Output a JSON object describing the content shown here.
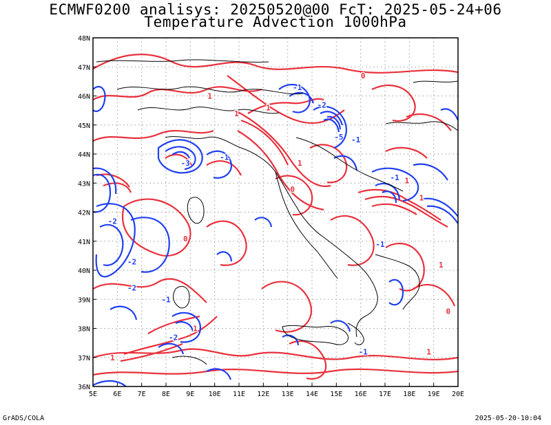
{
  "header": {
    "line1": "ECMWF0200 analisys: 20250520@00 FcT: 2025-05-24+06",
    "line2": "Temperature Advection 1000hPa"
  },
  "footer": {
    "left": "GrADS/COLA",
    "right": "2025-05-20-10:04"
  },
  "axes": {
    "lon_labels": [
      "5E",
      "6E",
      "7E",
      "8E",
      "9E",
      "10E",
      "11E",
      "12E",
      "13E",
      "14E",
      "15E",
      "16E",
      "17E",
      "18E",
      "19E",
      "20E"
    ],
    "lat_labels": [
      "36N",
      "37N",
      "38N",
      "39N",
      "40N",
      "41N",
      "42N",
      "43N",
      "44N",
      "45N",
      "46N",
      "47N",
      "48N"
    ],
    "lon_range": [
      5,
      20
    ],
    "lat_range": [
      36,
      48
    ]
  },
  "colors": {
    "positive": "#e8303c",
    "negative": "#1f3ff0",
    "grid": "#9a9a9a",
    "border": "#000000"
  },
  "contour_labels": [
    {
      "text": "-2",
      "lon": 5.8,
      "lat": 41.6,
      "sign": "neg"
    },
    {
      "text": "-2",
      "lon": 6.6,
      "lat": 40.2,
      "sign": "neg"
    },
    {
      "text": "-2",
      "lon": 6.6,
      "lat": 39.3,
      "sign": "neg"
    },
    {
      "text": "-1",
      "lon": 8.0,
      "lat": 38.9,
      "sign": "neg"
    },
    {
      "text": "-3",
      "lon": 8.8,
      "lat": 43.6,
      "sign": "neg"
    },
    {
      "text": "-1",
      "lon": 10.4,
      "lat": 43.8,
      "sign": "neg"
    },
    {
      "text": "-1",
      "lon": 13.4,
      "lat": 46.2,
      "sign": "neg"
    },
    {
      "text": "-2",
      "lon": 14.4,
      "lat": 45.6,
      "sign": "neg"
    },
    {
      "text": "-5",
      "lon": 15.1,
      "lat": 44.5,
      "sign": "neg"
    },
    {
      "text": "-1",
      "lon": 15.8,
      "lat": 44.4,
      "sign": "neg"
    },
    {
      "text": "-1",
      "lon": 17.4,
      "lat": 43.1,
      "sign": "neg"
    },
    {
      "text": "-1",
      "lon": 16.8,
      "lat": 40.8,
      "sign": "neg"
    },
    {
      "text": "-2",
      "lon": 8.3,
      "lat": 37.6,
      "sign": "neg"
    },
    {
      "text": "1",
      "lon": 9.8,
      "lat": 45.9,
      "sign": "pos"
    },
    {
      "text": "1",
      "lon": 10.9,
      "lat": 45.3,
      "sign": "pos"
    },
    {
      "text": "1",
      "lon": 12.2,
      "lat": 45.5,
      "sign": "pos"
    },
    {
      "text": "1",
      "lon": 13.5,
      "lat": 43.6,
      "sign": "pos"
    },
    {
      "text": "1",
      "lon": 17.9,
      "lat": 43.0,
      "sign": "pos"
    },
    {
      "text": "1",
      "lon": 18.5,
      "lat": 42.4,
      "sign": "pos"
    },
    {
      "text": "1",
      "lon": 9.2,
      "lat": 37.9,
      "sign": "pos"
    },
    {
      "text": "1",
      "lon": 5.8,
      "lat": 36.9,
      "sign": "pos"
    },
    {
      "text": "1",
      "lon": 19.3,
      "lat": 40.1,
      "sign": "pos"
    },
    {
      "text": "0",
      "lon": 8.8,
      "lat": 41.0,
      "sign": "pos"
    },
    {
      "text": "0",
      "lon": 13.2,
      "lat": 42.7,
      "sign": "pos"
    },
    {
      "text": "0",
      "lon": 16.1,
      "lat": 46.6,
      "sign": "pos"
    },
    {
      "text": "0",
      "lon": 19.6,
      "lat": 38.5,
      "sign": "pos"
    },
    {
      "text": "-1",
      "lon": 16.1,
      "lat": 37.1,
      "sign": "neg"
    },
    {
      "text": "1",
      "lon": 18.8,
      "lat": 37.1,
      "sign": "pos"
    }
  ]
}
